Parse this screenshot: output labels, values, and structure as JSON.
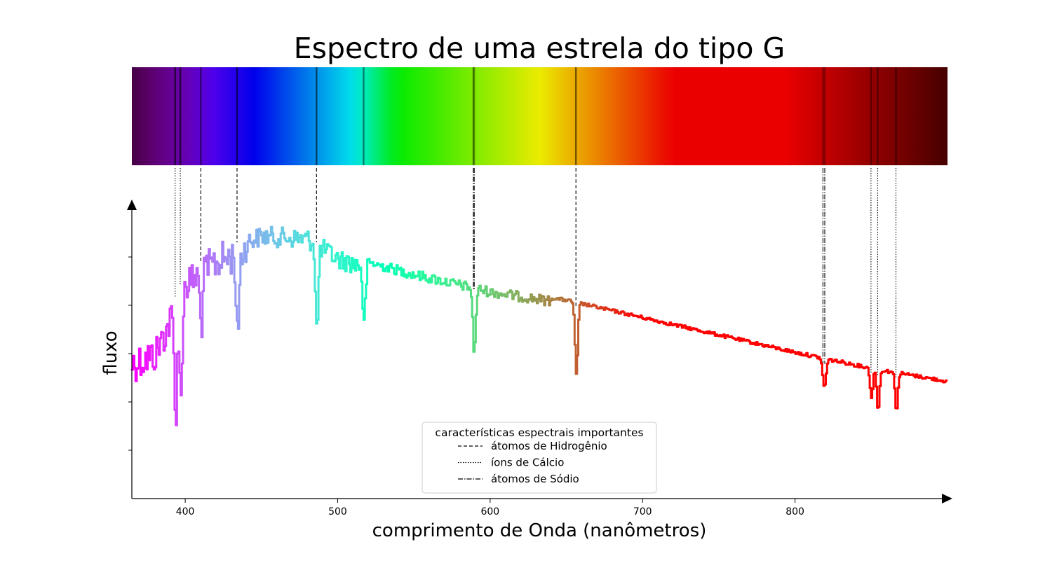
{
  "chart_data": {
    "type": "line",
    "title": "Espectro de uma estrela do tipo G",
    "xlabel": "comprimento de Onda (nanômetros)",
    "ylabel": "fluxo",
    "xlim": [
      365,
      900
    ],
    "ylim": [
      0,
      1.0
    ],
    "x_ticks": [
      400,
      500,
      600,
      700,
      800
    ],
    "x_tick_labels": [
      "400",
      "500",
      "600",
      "700",
      "800"
    ],
    "y_ticks": [
      0.1667,
      0.3333,
      0.5,
      0.6667,
      0.8333
    ],
    "y_tick_labels_shown": false,
    "grid": false,
    "colormap": "rainbow",
    "spectrum_band": true,
    "continuum": [
      [
        365,
        0.53
      ],
      [
        380,
        0.56
      ],
      [
        400,
        0.8
      ],
      [
        420,
        0.88
      ],
      [
        450,
        0.94
      ],
      [
        480,
        0.93
      ],
      [
        500,
        0.86
      ],
      [
        550,
        0.79
      ],
      [
        600,
        0.73
      ],
      [
        650,
        0.69
      ],
      [
        700,
        0.63
      ],
      [
        750,
        0.57
      ],
      [
        800,
        0.51
      ],
      [
        850,
        0.455
      ],
      [
        900,
        0.41
      ]
    ],
    "absorption_lines": [
      {
        "type": "calcium",
        "wavelength": 393.4,
        "depth": 0.38
      },
      {
        "type": "calcium",
        "wavelength": 396.8,
        "depth": 0.36
      },
      {
        "type": "hydrogen",
        "wavelength": 410.2,
        "depth": 0.18
      },
      {
        "type": "hydrogen",
        "wavelength": 434.0,
        "depth": 0.3
      },
      {
        "type": "hydrogen",
        "wavelength": 486.1,
        "depth": 0.3
      },
      {
        "type": "other",
        "wavelength": 517.0,
        "depth": 0.2
      },
      {
        "type": "sodium",
        "wavelength": 589.0,
        "depth": 0.12
      },
      {
        "type": "sodium",
        "wavelength": 589.6,
        "depth": 0.11
      },
      {
        "type": "hydrogen",
        "wavelength": 656.3,
        "depth": 0.25
      },
      {
        "type": "sodium",
        "wavelength": 818.3,
        "depth": 0.06
      },
      {
        "type": "sodium",
        "wavelength": 819.5,
        "depth": 0.06
      },
      {
        "type": "calcium",
        "wavelength": 849.8,
        "depth": 0.1
      },
      {
        "type": "calcium",
        "wavelength": 854.2,
        "depth": 0.14
      },
      {
        "type": "calcium",
        "wavelength": 866.2,
        "depth": 0.13
      }
    ],
    "feature_markers": [
      {
        "type": "calcium",
        "wavelength": 393.4
      },
      {
        "type": "calcium",
        "wavelength": 396.8
      },
      {
        "type": "hydrogen",
        "wavelength": 410.2
      },
      {
        "type": "hydrogen",
        "wavelength": 434.0
      },
      {
        "type": "hydrogen",
        "wavelength": 486.1
      },
      {
        "type": "sodium",
        "wavelength": 589.0
      },
      {
        "type": "sodium",
        "wavelength": 589.6
      },
      {
        "type": "hydrogen",
        "wavelength": 656.3
      },
      {
        "type": "sodium",
        "wavelength": 818.3
      },
      {
        "type": "sodium",
        "wavelength": 819.5
      },
      {
        "type": "calcium",
        "wavelength": 849.8
      },
      {
        "type": "calcium",
        "wavelength": 854.2
      },
      {
        "type": "calcium",
        "wavelength": 866.2
      }
    ],
    "legend": {
      "title": "características espectrais importantes",
      "placement": "lower-center",
      "entries": [
        {
          "key": "hydrogen",
          "label": "átomos de Hidrogênio",
          "style": "dashed"
        },
        {
          "key": "calcium",
          "label": "íons de Cálcio",
          "style": "dotted"
        },
        {
          "key": "sodium",
          "label": "átomos de Sódio",
          "style": "dashdot"
        }
      ]
    }
  }
}
